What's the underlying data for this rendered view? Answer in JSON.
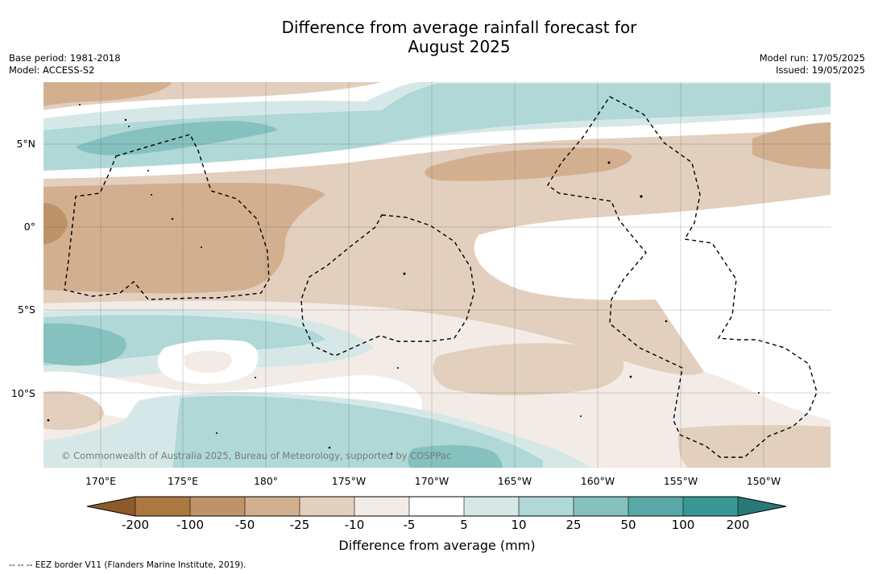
{
  "title_line1": "Difference from average rainfall forecast for",
  "title_line2": "August 2025",
  "meta_left": {
    "base_period": "Base period: 1981-2018",
    "model": "Model: ACCESS-S2"
  },
  "meta_right": {
    "model_run": "Model run: 17/05/2025",
    "issued": "Issued: 19/05/2025"
  },
  "copyright": "© Commonwealth of Australia 2025, Bureau of Meteorology, supported by COSPPac",
  "lat_labels": [
    "5°N",
    "0°",
    "5°S",
    "10°S"
  ],
  "lon_labels": [
    "170°E",
    "175°E",
    "180°",
    "175°W",
    "170°W",
    "165°W",
    "160°W",
    "155°W",
    "150°W"
  ],
  "colorbar": {
    "ticks": [
      "-200",
      "-100",
      "-50",
      "-25",
      "-10",
      "-5",
      "5",
      "10",
      "25",
      "50",
      "100",
      "200"
    ],
    "label": "Difference from average (mm)",
    "colors": {
      "under": "#8c5a2b",
      "c1": "#ab7841",
      "c2": "#be936a",
      "c3": "#d2b08f",
      "c4": "#e3cfbd",
      "c5": "#f3ebe6",
      "c6": "#ffffff",
      "c7": "#d5e8e7",
      "c8": "#afd8d6",
      "c9": "#85c1bf",
      "c10": "#5aa8a5",
      "c11": "#3a9894",
      "over": "#277a76"
    }
  },
  "footer": "--  --  -- EEZ border V11 (Flanders Marine Institute, 2019)."
}
